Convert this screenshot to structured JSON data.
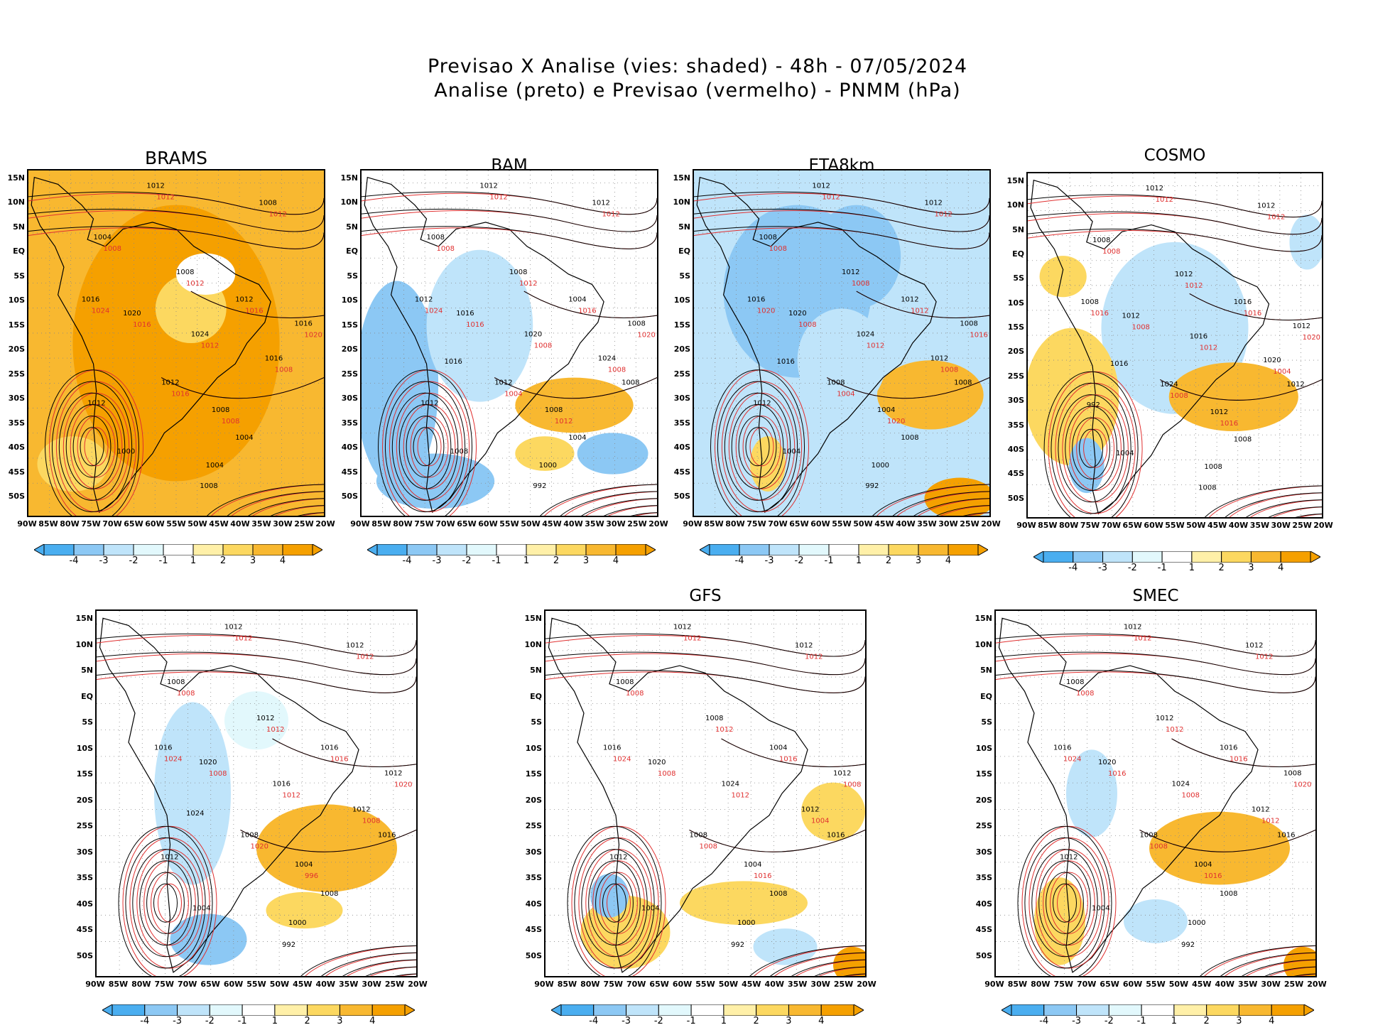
{
  "header": {
    "line1": "Previsao X Analise (vies: shaded) - 48h - 07/05/2024",
    "line2": "Analise (preto) e Previsao (vermelho) - PNMM (hPa)"
  },
  "axes": {
    "lat_labels": [
      "15N",
      "10N",
      "5N",
      "EQ",
      "5S",
      "10S",
      "15S",
      "20S",
      "25S",
      "30S",
      "35S",
      "40S",
      "45S",
      "50S"
    ],
    "lon_labels": [
      "90W",
      "85W",
      "80W",
      "75W",
      "70W",
      "65W",
      "60W",
      "55W",
      "50W",
      "45W",
      "40W",
      "35W",
      "30W",
      "25W",
      "20W"
    ]
  },
  "colorbar": {
    "labels": [
      "-4",
      "-3",
      "-2",
      "-1",
      "1",
      "2",
      "3",
      "4"
    ],
    "colors": [
      "#4aaef0",
      "#8cc8f4",
      "#bfe4fa",
      "#e2f8fc",
      "#ffffff",
      "#fff0a8",
      "#fcd860",
      "#f8b830",
      "#f5a000"
    ]
  },
  "contour_colors": {
    "analysis": "#000000",
    "forecast": "#e03030"
  },
  "panels": [
    {
      "title": "BRAMS",
      "black_labels": [
        "1012",
        "1008",
        "1004",
        "1008",
        "1012",
        "1016",
        "1016",
        "1020",
        "1024",
        "1016",
        "1012",
        "1008",
        "1004",
        "1000",
        "1004",
        "1008",
        "1012"
      ],
      "red_labels": [
        "1012",
        "1012",
        "1008",
        "1012",
        "1016",
        "1020",
        "1024",
        "1016",
        "1012",
        "1008",
        "1016",
        "1008"
      ]
    },
    {
      "title": "BAM",
      "black_labels": [
        "1012",
        "1012",
        "1008",
        "1008",
        "1004",
        "1008",
        "1012",
        "1016",
        "1020",
        "1024",
        "1012",
        "1008",
        "1004",
        "1008",
        "1000",
        "992",
        "1012",
        "1008",
        "1016"
      ],
      "red_labels": [
        "1012",
        "1012",
        "1008",
        "1012",
        "1016",
        "1020",
        "1024",
        "1016",
        "1008",
        "1008",
        "1004",
        "1012"
      ]
    },
    {
      "title": "ETA8km",
      "black_labels": [
        "1012",
        "1012",
        "1008",
        "1012",
        "1012",
        "1008",
        "1016",
        "1020",
        "1024",
        "1012",
        "1008",
        "1004",
        "1008",
        "1004",
        "1000",
        "992",
        "1012",
        "1008",
        "1016"
      ],
      "red_labels": [
        "1012",
        "1012",
        "1008",
        "1008",
        "1012",
        "1016",
        "1020",
        "1008",
        "1012",
        "1008",
        "1004",
        "1020"
      ]
    },
    {
      "title": "COSMO",
      "black_labels": [
        "1012",
        "1012",
        "1008",
        "1012",
        "1016",
        "1012",
        "1008",
        "1012",
        "1016",
        "1020",
        "1024",
        "1012",
        "1008",
        "1004",
        "1008",
        "1008",
        "992",
        "1012",
        "1016"
      ],
      "red_labels": [
        "1012",
        "1012",
        "1008",
        "1012",
        "1016",
        "1020",
        "1016",
        "1008",
        "1012",
        "1004",
        "1008",
        "1016"
      ]
    },
    {
      "title": "",
      "black_labels": [
        "1012",
        "1012",
        "1008",
        "1012",
        "1016",
        "1012",
        "1016",
        "1020",
        "1016",
        "1012",
        "1008",
        "1004",
        "1008",
        "1004",
        "1000",
        "992",
        "1012",
        "1016",
        "1024"
      ],
      "red_labels": [
        "1012",
        "1012",
        "1008",
        "1012",
        "1016",
        "1020",
        "1024",
        "1008",
        "1012",
        "1008",
        "1020",
        "996"
      ]
    },
    {
      "title": "GFS",
      "black_labels": [
        "1012",
        "1012",
        "1008",
        "1008",
        "1004",
        "1012",
        "1016",
        "1020",
        "1024",
        "1012",
        "1008",
        "1004",
        "1008",
        "1004",
        "1000",
        "992",
        "1012",
        "1016"
      ],
      "red_labels": [
        "1012",
        "1012",
        "1008",
        "1012",
        "1016",
        "1008",
        "1024",
        "1008",
        "1012",
        "1004",
        "1008",
        "1016"
      ]
    },
    {
      "title": "SMEC",
      "black_labels": [
        "1012",
        "1012",
        "1008",
        "1012",
        "1016",
        "1008",
        "1016",
        "1020",
        "1024",
        "1012",
        "1008",
        "1004",
        "1008",
        "1004",
        "1000",
        "992",
        "1012",
        "1016"
      ],
      "red_labels": [
        "1012",
        "1012",
        "1008",
        "1012",
        "1016",
        "1020",
        "1024",
        "1016",
        "1008",
        "1012",
        "1008",
        "1016"
      ]
    }
  ]
}
